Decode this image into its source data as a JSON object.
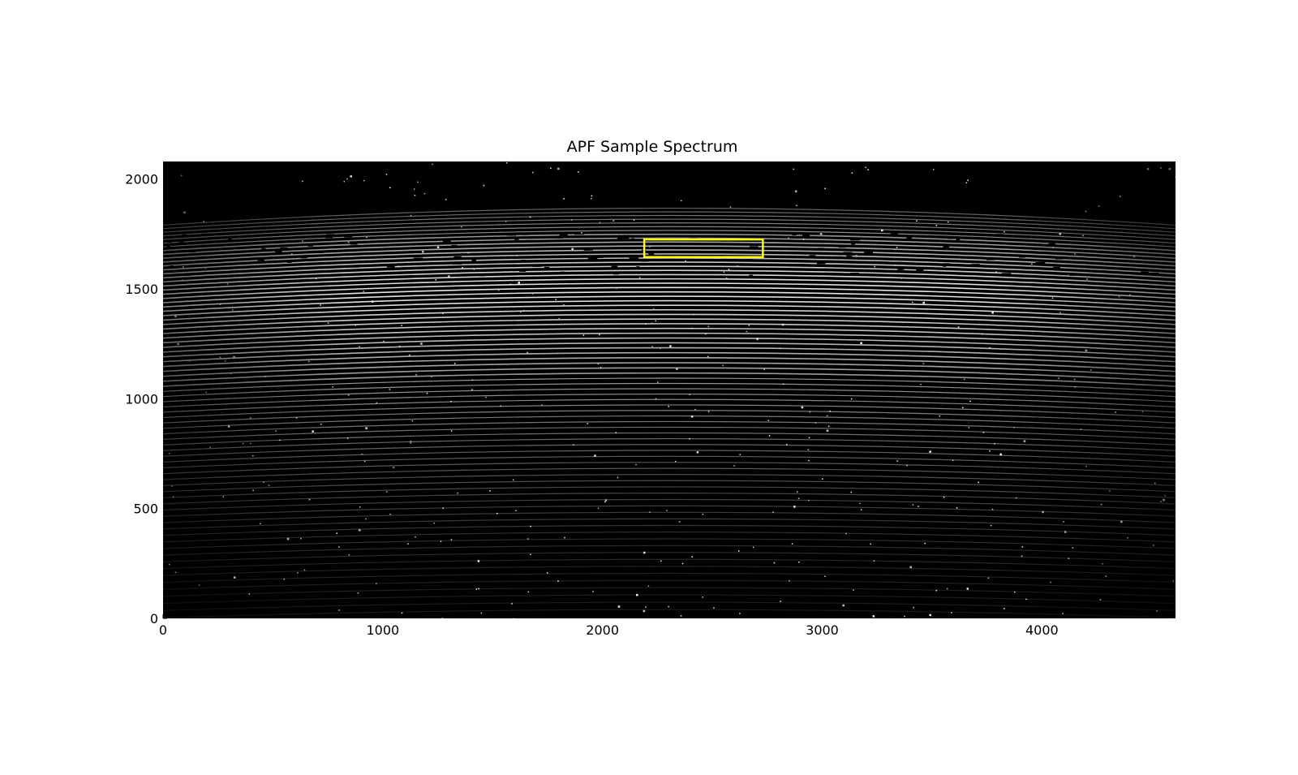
{
  "chart_data": {
    "type": "heatmap",
    "title": "APF Sample Spectrum",
    "xlabel": "",
    "ylabel": "",
    "xlim": [
      0,
      4608
    ],
    "ylim": [
      0,
      2080
    ],
    "x_ticks": [
      {
        "value": 0,
        "label": "0"
      },
      {
        "value": 1000,
        "label": "1000"
      },
      {
        "value": 2000,
        "label": "2000"
      },
      {
        "value": 3000,
        "label": "3000"
      },
      {
        "value": 4000,
        "label": "4000"
      }
    ],
    "y_ticks": [
      {
        "value": 0,
        "label": "0"
      },
      {
        "value": 500,
        "label": "500"
      },
      {
        "value": 1000,
        "label": "1000"
      },
      {
        "value": 1500,
        "label": "1500"
      },
      {
        "value": 2000,
        "label": "2000"
      }
    ],
    "colormap": "gray",
    "grid": false,
    "background_color": "#000000",
    "highlight_region": {
      "x": [
        2190,
        2730
      ],
      "y": [
        1645,
        1725
      ],
      "color": "#ffff00"
    }
  }
}
